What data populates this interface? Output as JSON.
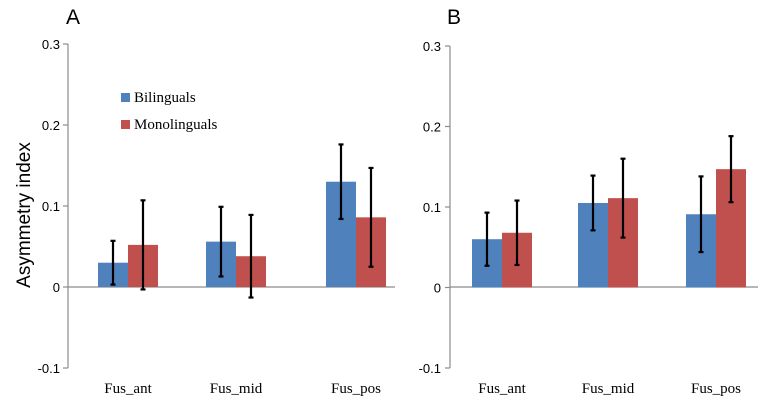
{
  "y_axis_title": "Asymmetry index",
  "chart_data": [
    {
      "type": "bar",
      "panel_label": "A",
      "categories": [
        "Fus_ant",
        "Fus_mid",
        "Fus_pos"
      ],
      "series": [
        {
          "name": "Bilinguals",
          "color": "#4f81bd",
          "values": [
            0.03,
            0.056,
            0.13
          ],
          "error": [
            0.027,
            0.043,
            0.046
          ]
        },
        {
          "name": "Monolinguals",
          "color": "#c0504d",
          "values": [
            0.052,
            0.038,
            0.086
          ],
          "error": [
            0.055,
            0.051,
            0.061
          ]
        }
      ],
      "ylabel": "Asymmetry index",
      "ylim": [
        -0.1,
        0.3
      ],
      "yticks": [
        "-0.1",
        "0",
        "0.1",
        "0.2",
        "0.3"
      ],
      "legend": "top-left",
      "grid": false
    },
    {
      "type": "bar",
      "panel_label": "B",
      "categories": [
        "Fus_ant",
        "Fus_mid",
        "Fus_pos"
      ],
      "series": [
        {
          "name": "Bilinguals",
          "color": "#4f81bd",
          "values": [
            0.06,
            0.105,
            0.091
          ],
          "error": [
            0.033,
            0.034,
            0.047
          ]
        },
        {
          "name": "Monolinguals",
          "color": "#c0504d",
          "values": [
            0.068,
            0.111,
            0.147
          ],
          "error": [
            0.04,
            0.049,
            0.041
          ]
        }
      ],
      "ylim": [
        -0.1,
        0.3
      ],
      "yticks": [
        "-0.1",
        "0",
        "0.1",
        "0.2",
        "0.3"
      ],
      "grid": false
    }
  ]
}
